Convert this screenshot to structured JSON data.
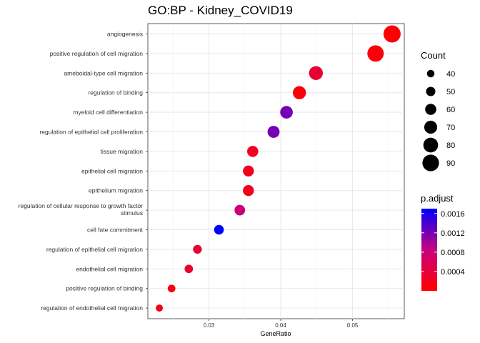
{
  "chart_data": {
    "type": "scatter",
    "title": "GO:BP - Kidney_COVID19",
    "xlabel": "GeneRatio",
    "ylabel": "",
    "xlim": [
      0.0215,
      0.0572
    ],
    "xticks": [
      0.03,
      0.04,
      0.05
    ],
    "xtick_labels": [
      "0.03",
      "0.04",
      "0.05"
    ],
    "grid": true,
    "categories": [
      "angiogenesis",
      "positive regulation of cell migration",
      "ameboidal-type cell migration",
      "regulation of binding",
      "myeloid cell differentiation",
      "regulation of epithelial cell proliferation",
      "tissue migration",
      "epithelial cell migration",
      "epithelium migration",
      "regulation of cellular response to growth factor stimulus",
      "cell fate commitment",
      "regulation of epithelial cell migration",
      "endothelial cell migration",
      "positive regulation of binding",
      "regulation of endothelial cell migration"
    ],
    "points": [
      {
        "term": "angiogenesis",
        "gene_ratio": 0.0555,
        "count": 93,
        "p_adjust": 2e-05
      },
      {
        "term": "positive regulation of cell migration",
        "gene_ratio": 0.0532,
        "count": 89,
        "p_adjust": 6e-05
      },
      {
        "term": "ameboidal-type cell migration",
        "gene_ratio": 0.0449,
        "count": 75,
        "p_adjust": 0.00035
      },
      {
        "term": "regulation of binding",
        "gene_ratio": 0.0426,
        "count": 71,
        "p_adjust": 6e-05
      },
      {
        "term": "myeloid cell differentiation",
        "gene_ratio": 0.0408,
        "count": 68,
        "p_adjust": 0.0012
      },
      {
        "term": "regulation of epithelial cell proliferation",
        "gene_ratio": 0.039,
        "count": 65,
        "p_adjust": 0.0012
      },
      {
        "term": "tissue migration",
        "gene_ratio": 0.0361,
        "count": 60,
        "p_adjust": 0.00022
      },
      {
        "term": "epithelial cell migration",
        "gene_ratio": 0.0355,
        "count": 59,
        "p_adjust": 0.00018
      },
      {
        "term": "epithelium migration",
        "gene_ratio": 0.0355,
        "count": 59,
        "p_adjust": 0.00018
      },
      {
        "term": "regulation of cellular response to growth factor stimulus",
        "gene_ratio": 0.0343,
        "count": 57,
        "p_adjust": 0.0008
      },
      {
        "term": "cell fate commitment",
        "gene_ratio": 0.0314,
        "count": 52,
        "p_adjust": 0.0017
      },
      {
        "term": "regulation of epithelial cell migration",
        "gene_ratio": 0.0284,
        "count": 47,
        "p_adjust": 0.00035
      },
      {
        "term": "endothelial cell migration",
        "gene_ratio": 0.0272,
        "count": 45,
        "p_adjust": 0.00028
      },
      {
        "term": "positive regulation of binding",
        "gene_ratio": 0.0248,
        "count": 41,
        "p_adjust": 6e-05
      },
      {
        "term": "regulation of endothelial cell migration",
        "gene_ratio": 0.0231,
        "count": 38,
        "p_adjust": 0.00015
      }
    ],
    "legend_size": {
      "title": "Count",
      "values": [
        40,
        50,
        60,
        70,
        80,
        90
      ],
      "labels": [
        "40",
        "50",
        "60",
        "70",
        "80",
        "90"
      ]
    },
    "legend_color": {
      "title": "p.adjust",
      "range": [
        0.0,
        0.0017
      ],
      "ticks": [
        0.0004,
        0.0008,
        0.0012,
        0.0016
      ],
      "tick_labels": [
        "0.0004",
        "0.0008",
        "0.0012",
        "0.0016"
      ],
      "low_color": "#FF0000",
      "high_color": "#0000FF"
    },
    "legend_position": "right"
  }
}
